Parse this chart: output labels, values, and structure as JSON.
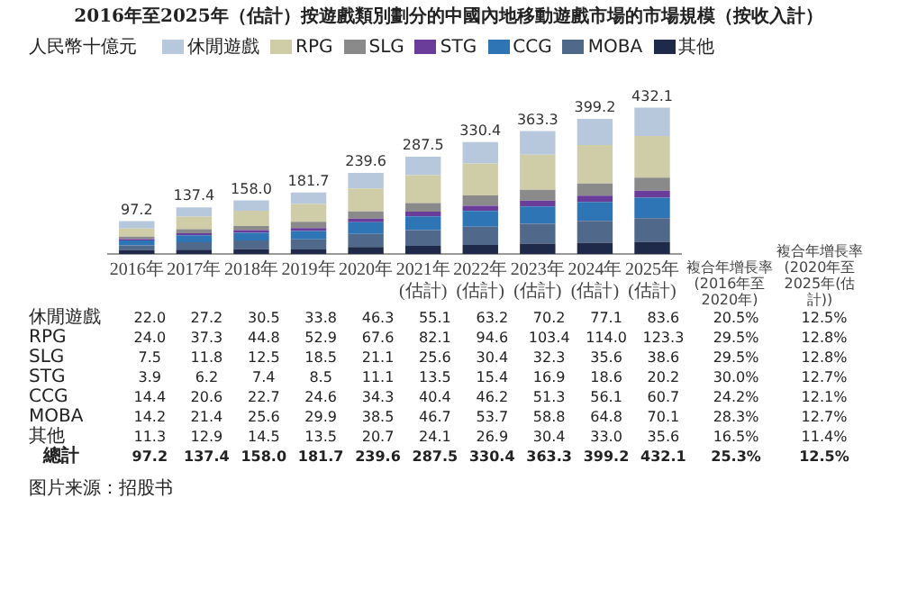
{
  "chart_data": {
    "type": "bar",
    "stacked": true,
    "title": "2016年至2025年（估計）按遊戲類別劃分的中國內地移動遊戲市場的市場規模（按收入計）",
    "ylabel": "人民幣十億元",
    "legend": "top",
    "grid": false,
    "categories": [
      "2016年",
      "2017年",
      "2018年",
      "2019年",
      "2020年",
      "2021年(估計)",
      "2022年(估計)",
      "2023年(估計)",
      "2024年(估計)",
      "2025年(估計)"
    ],
    "series": [
      {
        "name": "其他",
        "color": "#1f2a4a",
        "values": [
          11.3,
          12.9,
          14.5,
          13.5,
          20.7,
          24.1,
          26.9,
          30.4,
          33.0,
          35.6
        ],
        "value_labels": [
          "11.3",
          "12.9",
          "14.5",
          "13.5",
          "20.7",
          "24.1",
          "26.9",
          "30.4",
          "33.0",
          "35.6"
        ]
      },
      {
        "name": "MOBA",
        "color": "#50698a",
        "values": [
          14.2,
          21.4,
          25.6,
          29.9,
          38.5,
          46.7,
          53.7,
          58.8,
          64.8,
          70.1
        ],
        "value_labels": [
          "14.2",
          "21.4",
          "25.6",
          "29.9",
          "38.5",
          "46.7",
          "53.7",
          "58.8",
          "64.8",
          "70.1"
        ]
      },
      {
        "name": "CCG",
        "color": "#2e75b6",
        "values": [
          14.4,
          20.6,
          22.7,
          24.6,
          34.3,
          40.4,
          46.2,
          51.3,
          56.1,
          60.7
        ],
        "value_labels": [
          "14.4",
          "20.6",
          "22.7",
          "24.6",
          "34.3",
          "40.4",
          "46.2",
          "51.3",
          "56.1",
          "60.7"
        ]
      },
      {
        "name": "STG",
        "color": "#6a3d9a",
        "values": [
          3.9,
          6.2,
          7.4,
          8.5,
          11.1,
          13.5,
          15.4,
          16.9,
          18.6,
          20.2
        ],
        "value_labels": [
          "3.9",
          "6.2",
          "7.4",
          "8.5",
          "11.1",
          "13.5",
          "15.4",
          "16.9",
          "18.6",
          "20.2"
        ]
      },
      {
        "name": "SLG",
        "color": "#8a8a8a",
        "values": [
          7.5,
          11.8,
          12.5,
          18.5,
          21.1,
          25.6,
          30.4,
          32.3,
          35.6,
          38.6
        ],
        "value_labels": [
          "7.5",
          "11.8",
          "12.5",
          "18.5",
          "21.1",
          "25.6",
          "30.4",
          "32.3",
          "35.6",
          "38.6"
        ]
      },
      {
        "name": "RPG",
        "color": "#cfcca8",
        "values": [
          24.0,
          37.3,
          44.8,
          52.9,
          67.6,
          82.1,
          94.6,
          103.4,
          114.0,
          123.3
        ],
        "value_labels": [
          "24.0",
          "37.3",
          "44.8",
          "52.9",
          "67.6",
          "82.1",
          "94.6",
          "103.4",
          "114.0",
          "123.3"
        ]
      },
      {
        "name": "休閒遊戲",
        "color": "#b8c8dc",
        "values": [
          22.0,
          27.2,
          30.5,
          33.8,
          46.3,
          55.1,
          63.2,
          70.2,
          77.1,
          83.6
        ],
        "value_labels": [
          "22.0",
          "27.2",
          "30.5",
          "33.8",
          "46.3",
          "55.1",
          "63.2",
          "70.2",
          "77.1",
          "83.6"
        ]
      }
    ],
    "totals": [
      "97.2",
      "137.4",
      "158.0",
      "181.7",
      "239.6",
      "287.5",
      "330.4",
      "363.3",
      "399.2",
      "432.1"
    ],
    "annotations": [
      "總計",
      "複合年增長率(2016年至2020年)",
      "複合年增長率(2020年至2025年(估計))",
      "20.5%",
      "12.5%",
      "29.5%",
      "12.8%",
      "29.5%",
      "12.8%",
      "30.0%",
      "12.7%",
      "24.2%",
      "12.1%",
      "28.3%",
      "12.7%",
      "16.5%",
      "11.4%",
      "25.3%",
      "12.5%",
      "图片来源：招股书"
    ]
  }
}
